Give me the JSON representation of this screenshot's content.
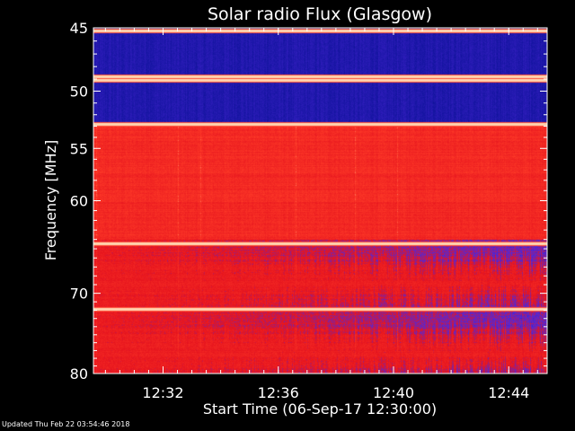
{
  "chart_data": {
    "type": "heatmap",
    "title": "Solar radio Flux (Glasgow)",
    "xlabel": "Start Time (06-Sep-17 12:30:00)",
    "ylabel": "Frequency [MHz]",
    "xlim": [
      "12:29:35",
      "12:45:20"
    ],
    "ylim": [
      45,
      80
    ],
    "y_scale": "log",
    "xticks": [
      "12:32",
      "12:36",
      "12:40",
      "12:44"
    ],
    "yticks": [
      45,
      50,
      55,
      60,
      70,
      80
    ],
    "colors": {
      "background": "#000000",
      "axes": "#ffffff",
      "low": "#1a1aa8",
      "mid": "#e02020",
      "high": "#ffe8b0"
    },
    "intensity_bands": [
      {
        "from_mhz": 45,
        "to_mhz": 52.8,
        "level": "low"
      },
      {
        "from_mhz": 52.8,
        "to_mhz": 64,
        "level": "mid"
      },
      {
        "from_mhz": 64,
        "to_mhz": 80,
        "level": "mixed"
      }
    ],
    "bright_lines_mhz": [
      45.2,
      48.8,
      49.1,
      52.8,
      64.4,
      71.8
    ]
  },
  "footer": {
    "updated": "Updated Thu Feb 22 03:54:46 2018"
  }
}
